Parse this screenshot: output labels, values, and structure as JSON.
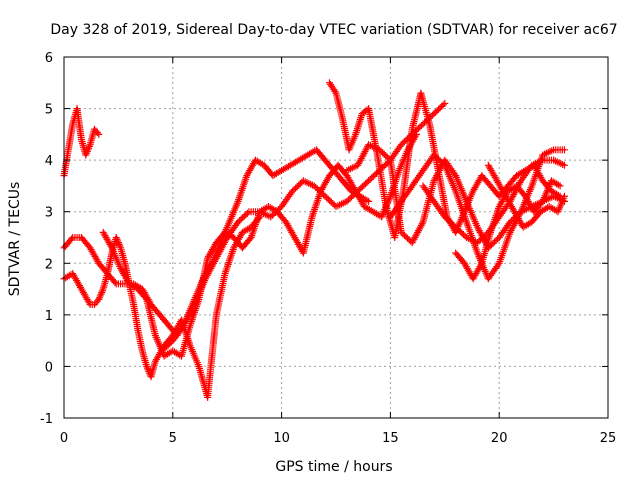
{
  "chart_data": {
    "type": "scatter",
    "title": "Day 328 of 2019, Sidereal Day-to-day VTEC variation (SDTVAR) for receiver ac67",
    "xlabel": "GPS time / hours",
    "ylabel": "SDTVAR / TECUs",
    "xlim": [
      0,
      25
    ],
    "ylim": [
      -1,
      6
    ],
    "x_ticks": [
      "0",
      "5",
      "10",
      "15",
      "20",
      "25"
    ],
    "y_ticks": [
      "-1",
      "0",
      "1",
      "2",
      "3",
      "4",
      "5",
      "6"
    ],
    "grid": true,
    "marker": "plus",
    "color": "#ff0000",
    "series": [
      {
        "x": [
          0.0,
          0.2,
          0.4,
          0.6,
          0.8,
          1.0,
          1.2,
          1.4,
          1.6
        ],
        "y": [
          3.7,
          4.2,
          4.7,
          5.0,
          4.4,
          4.1,
          4.3,
          4.6,
          4.5
        ]
      },
      {
        "x": [
          0.0,
          0.4,
          0.8,
          1.2,
          1.6,
          2.0,
          2.4,
          2.8,
          3.2,
          3.6,
          4.0,
          4.4,
          4.8,
          5.2,
          5.6,
          6.0,
          6.4,
          6.8,
          7.2,
          7.6,
          8.0,
          8.4,
          8.8,
          9.2,
          9.6,
          10.0,
          10.4,
          10.8,
          11.2,
          11.6,
          12.0,
          12.4,
          12.8,
          13.2,
          13.6,
          14.0
        ],
        "y": [
          2.3,
          2.5,
          2.5,
          2.3,
          2.0,
          1.8,
          1.6,
          1.6,
          1.6,
          1.5,
          1.2,
          1.0,
          0.8,
          0.6,
          0.9,
          1.3,
          1.7,
          2.0,
          2.4,
          2.8,
          3.2,
          3.7,
          4.0,
          3.9,
          3.7,
          3.8,
          3.9,
          4.0,
          4.1,
          4.2,
          4.0,
          3.8,
          3.6,
          3.4,
          3.3,
          3.2
        ]
      },
      {
        "x": [
          0.0,
          0.4,
          0.8,
          1.2,
          1.4,
          1.6,
          1.8,
          2.0,
          2.2,
          2.4,
          2.6,
          2.8,
          3.0,
          3.2,
          3.4,
          3.6,
          3.8,
          4.0,
          4.2,
          4.6,
          5.0,
          5.4,
          5.8,
          6.2,
          6.6,
          7.0,
          7.4,
          7.8,
          8.2,
          8.6,
          9.0
        ],
        "y": [
          1.7,
          1.8,
          1.5,
          1.2,
          1.2,
          1.3,
          1.5,
          1.8,
          2.2,
          2.5,
          2.3,
          2.0,
          1.6,
          1.2,
          0.7,
          0.3,
          0.0,
          -0.2,
          0.1,
          0.4,
          0.6,
          0.9,
          0.4,
          0.0,
          -0.6,
          1.0,
          1.8,
          2.3,
          2.6,
          2.7,
          2.9
        ]
      },
      {
        "x": [
          1.8,
          2.2,
          2.6,
          3.0,
          3.4,
          3.8,
          4.2,
          4.6,
          5.0,
          5.4,
          5.8,
          6.2,
          6.6,
          7.0,
          7.4,
          7.8,
          8.2,
          8.6,
          9.0,
          9.4,
          9.8,
          10.2,
          10.6,
          11.0,
          11.4,
          11.8,
          12.2,
          12.6,
          13.0,
          13.4,
          13.8,
          14.2,
          14.6,
          15.0,
          15.4,
          15.8,
          16.2
        ],
        "y": [
          2.6,
          2.3,
          1.9,
          1.6,
          1.5,
          1.3,
          0.6,
          0.2,
          0.3,
          0.2,
          0.8,
          1.3,
          2.1,
          2.4,
          2.6,
          2.5,
          2.3,
          2.5,
          3.0,
          3.1,
          3.0,
          2.8,
          2.5,
          2.2,
          2.9,
          3.4,
          3.7,
          3.9,
          3.7,
          3.4,
          3.1,
          3.0,
          2.9,
          3.3,
          3.8,
          4.2,
          4.5
        ]
      },
      {
        "x": [
          4.5,
          5.0,
          5.5,
          6.0,
          6.5,
          7.0,
          7.5,
          8.0,
          8.5,
          9.0,
          9.5,
          10.0,
          10.5,
          11.0,
          11.5,
          12.0,
          12.5,
          13.0,
          13.5,
          14.0,
          14.5,
          15.0,
          15.5,
          16.0,
          16.5,
          17.0,
          17.5
        ],
        "y": [
          0.3,
          0.5,
          0.8,
          1.2,
          1.7,
          2.1,
          2.5,
          2.8,
          3.0,
          3.0,
          2.9,
          3.1,
          3.4,
          3.6,
          3.5,
          3.3,
          3.1,
          3.2,
          3.4,
          3.6,
          3.8,
          4.0,
          4.3,
          4.5,
          4.7,
          4.9,
          5.1
        ]
      },
      {
        "x": [
          12.2,
          12.5,
          12.8,
          13.1,
          13.4,
          13.7,
          14.0,
          14.4,
          14.8,
          15.2,
          15.6,
          16.0,
          16.4,
          16.8,
          17.2,
          17.6,
          18.0,
          18.4,
          18.8,
          19.2,
          19.6,
          20.0,
          20.4,
          20.8,
          21.2,
          21.6,
          22.0,
          22.4,
          22.8
        ],
        "y": [
          5.5,
          5.3,
          4.8,
          4.2,
          4.5,
          4.9,
          5.0,
          4.1,
          3.1,
          2.5,
          3.4,
          4.6,
          5.3,
          4.7,
          3.8,
          2.9,
          2.6,
          3.0,
          3.4,
          3.7,
          3.5,
          3.3,
          3.5,
          3.7,
          3.8,
          3.9,
          3.6,
          3.4,
          3.3
        ]
      },
      {
        "x": [
          13.0,
          13.5,
          14.0,
          14.5,
          15.0,
          15.5,
          16.0,
          16.5,
          17.0,
          17.5,
          18.0,
          18.5,
          19.0,
          19.5,
          20.0,
          20.5,
          21.0,
          21.5,
          22.0,
          22.5,
          23.0
        ],
        "y": [
          3.8,
          3.9,
          4.3,
          4.2,
          4.0,
          2.6,
          2.4,
          2.8,
          3.6,
          4.0,
          3.7,
          3.2,
          2.7,
          2.3,
          2.5,
          2.8,
          3.0,
          3.1,
          3.2,
          3.3,
          3.2
        ]
      },
      {
        "x": [
          15.0,
          15.5,
          16.0,
          16.5,
          17.0,
          17.5,
          18.0,
          18.5,
          19.0,
          19.5,
          20.0,
          20.5,
          21.0,
          21.5,
          22.0,
          22.5,
          23.0
        ],
        "y": [
          2.9,
          3.2,
          3.5,
          3.8,
          4.1,
          3.9,
          3.4,
          2.8,
          2.2,
          1.7,
          2.0,
          2.6,
          3.0,
          3.5,
          4.1,
          4.2,
          4.2
        ]
      },
      {
        "x": [
          16.5,
          17.0,
          17.5,
          18.0,
          18.5,
          19.0,
          19.5,
          20.0,
          20.5,
          21.0,
          21.5,
          22.0,
          22.5,
          23.0
        ],
        "y": [
          3.5,
          3.2,
          2.9,
          2.7,
          2.5,
          2.4,
          2.6,
          2.9,
          3.2,
          3.6,
          3.9,
          4.0,
          4.0,
          3.9
        ]
      },
      {
        "x": [
          18.0,
          18.4,
          18.8,
          19.2,
          19.6,
          20.0,
          20.4,
          20.8,
          21.2,
          21.6,
          22.0,
          22.4,
          22.8
        ],
        "y": [
          2.2,
          2.0,
          1.7,
          2.0,
          2.6,
          3.1,
          3.4,
          3.5,
          3.3,
          3.0,
          3.2,
          3.6,
          3.5
        ]
      },
      {
        "x": [
          19.5,
          19.9,
          20.3,
          20.7,
          21.1,
          21.5,
          21.9,
          22.3,
          22.7,
          23.0
        ],
        "y": [
          3.9,
          3.6,
          3.3,
          3.0,
          2.7,
          2.8,
          3.0,
          3.1,
          3.0,
          3.3
        ]
      }
    ]
  }
}
